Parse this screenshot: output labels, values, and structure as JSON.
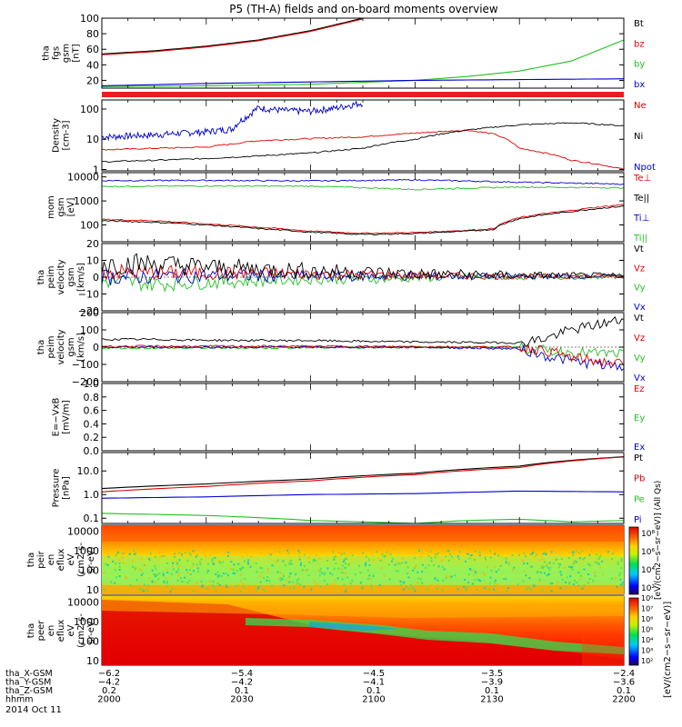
{
  "title": "P5 (TH-A) fields and on-board moments overview",
  "chart_data": [
    {
      "type": "line",
      "ylabel": [
        "tha",
        "fgs",
        "gsm",
        "[nT]"
      ],
      "ylim": [
        10,
        100
      ],
      "log": false,
      "ticks": [
        "20",
        "40",
        "60",
        "80",
        "100"
      ],
      "tick_values": [
        20,
        40,
        60,
        80,
        100
      ],
      "legend": [
        {
          "name": "Bt",
          "color": "#000000"
        },
        {
          "name": "bz",
          "color": "#e00000"
        },
        {
          "name": "by",
          "color": "#22c022"
        },
        {
          "name": "bx",
          "color": "#0000cc"
        }
      ],
      "series": [
        {
          "name": "Bt",
          "color": "#000000",
          "x": [
            0,
            0.1,
            0.2,
            0.3,
            0.4,
            0.5
          ],
          "y": [
            54,
            58,
            64,
            72,
            84,
            100
          ]
        },
        {
          "name": "bz",
          "color": "#e00000",
          "x": [
            0,
            0.1,
            0.2,
            0.3,
            0.4,
            0.5
          ],
          "y": [
            53,
            57,
            63,
            71,
            83,
            99
          ]
        },
        {
          "name": "by",
          "color": "#22c022",
          "x": [
            0,
            0.2,
            0.4,
            0.6,
            0.7,
            0.8,
            0.9,
            1.0
          ],
          "y": [
            12,
            13,
            15,
            20,
            25,
            32,
            45,
            72
          ]
        },
        {
          "name": "bx",
          "color": "#0000cc",
          "x": [
            0,
            0.2,
            0.4,
            0.6,
            0.8,
            1.0
          ],
          "y": [
            13,
            16,
            18,
            20,
            21,
            22
          ]
        }
      ]
    },
    {
      "type": "line",
      "ylabel": [
        "Density",
        "[cm-3]"
      ],
      "ylim": [
        0.9,
        200
      ],
      "log": true,
      "ticks": [
        "1",
        "10",
        "100"
      ],
      "tick_values": [
        1,
        10,
        100
      ],
      "legend": [
        {
          "name": "Ne",
          "color": "#e00000"
        },
        {
          "name": "Ni",
          "color": "#000000"
        },
        {
          "name": "Npot",
          "color": "#0000cc"
        }
      ],
      "series": [
        {
          "name": "Npot",
          "color": "#0000cc",
          "x": [
            0,
            0.1,
            0.2,
            0.25,
            0.28,
            0.3,
            0.35,
            0.4,
            0.45,
            0.5
          ],
          "y": [
            12,
            14,
            18,
            22,
            60,
            110,
            90,
            85,
            110,
            160
          ]
        },
        {
          "name": "Ne",
          "color": "#e00000",
          "x": [
            0,
            0.1,
            0.2,
            0.25,
            0.3,
            0.5,
            0.7,
            0.75,
            0.8,
            0.85,
            0.9,
            1.0
          ],
          "y": [
            4.5,
            5,
            5.5,
            7,
            9,
            12,
            20,
            15,
            5,
            3.5,
            2,
            1
          ]
        },
        {
          "name": "Ni",
          "color": "#000000",
          "x": [
            0,
            0.1,
            0.2,
            0.3,
            0.4,
            0.5,
            0.6,
            0.7,
            0.8,
            0.9,
            1.0
          ],
          "y": [
            1.8,
            2,
            2.3,
            2.8,
            3.5,
            5,
            10,
            20,
            30,
            35,
            28
          ]
        }
      ]
    },
    {
      "type": "line",
      "ylabel": [
        "mom",
        "gsm",
        "[eV]"
      ],
      "ylim": [
        20,
        15000
      ],
      "log": true,
      "ticks": [
        "100",
        "1000",
        "10000"
      ],
      "tick_values": [
        100,
        1000,
        10000
      ],
      "legend": [
        {
          "name": "Te⊥",
          "color": "#e00000"
        },
        {
          "name": "Te||",
          "color": "#000000"
        },
        {
          "name": "Ti⊥",
          "color": "#0000cc"
        },
        {
          "name": "Ti||",
          "color": "#22c022"
        }
      ],
      "series": [
        {
          "name": "Ti⊥",
          "color": "#0000cc",
          "x": [
            0,
            0.2,
            0.4,
            0.6,
            0.8,
            1.0
          ],
          "y": [
            7000,
            7200,
            6800,
            7500,
            6000,
            5000
          ]
        },
        {
          "name": "Ti||",
          "color": "#22c022",
          "x": [
            0,
            0.2,
            0.4,
            0.6,
            0.8,
            1.0
          ],
          "y": [
            4000,
            4200,
            4100,
            3000,
            3800,
            3500
          ]
        },
        {
          "name": "Te⊥",
          "color": "#e00000",
          "x": [
            0,
            0.1,
            0.2,
            0.3,
            0.4,
            0.5,
            0.6,
            0.7,
            0.75,
            0.8,
            0.9,
            1.0
          ],
          "y": [
            170,
            150,
            110,
            80,
            55,
            45,
            48,
            60,
            70,
            200,
            400,
            700
          ]
        },
        {
          "name": "Te||",
          "color": "#000000",
          "x": [
            0,
            0.1,
            0.2,
            0.3,
            0.4,
            0.5,
            0.6,
            0.7,
            0.75,
            0.8,
            0.9,
            1.0
          ],
          "y": [
            150,
            130,
            100,
            70,
            50,
            40,
            44,
            55,
            65,
            180,
            360,
            600
          ]
        }
      ]
    },
    {
      "type": "line",
      "ylabel": [
        "tha",
        "peim",
        "velocity",
        "gsm",
        "[km/s]"
      ],
      "ylim": [
        -20,
        20
      ],
      "log": false,
      "ticks": [
        "20",
        "10",
        "0",
        "−10",
        "−20"
      ],
      "tick_values": [
        20,
        10,
        0,
        -10,
        -20
      ],
      "legend": [
        {
          "name": "Vt",
          "color": "#000000"
        },
        {
          "name": "Vz",
          "color": "#e00000"
        },
        {
          "name": "Vy",
          "color": "#22c022"
        },
        {
          "name": "Vx",
          "color": "#0000cc"
        }
      ],
      "series": [
        {
          "name": "Vy",
          "color": "#22c022",
          "x": [
            0,
            0.1,
            0.2,
            0.3,
            0.4,
            0.5,
            0.6,
            0.7,
            0.8,
            0.9,
            1.0
          ],
          "y": [
            -2,
            -4,
            -3,
            -2,
            -1,
            -1,
            -0.5,
            0,
            0,
            0,
            0
          ]
        },
        {
          "name": "Vx",
          "color": "#0000cc",
          "x": [
            0,
            0.2,
            0.4,
            0.6,
            0.8,
            1.0
          ],
          "y": [
            0,
            1,
            0.5,
            0.5,
            0.5,
            0.5
          ]
        },
        {
          "name": "Vz",
          "color": "#e00000",
          "x": [
            0,
            0.2,
            0.4,
            0.6,
            0.8,
            1.0
          ],
          "y": [
            3,
            2.5,
            2,
            1,
            0.5,
            0.5
          ]
        },
        {
          "name": "Vt",
          "color": "#000000",
          "x": [
            0,
            0.1,
            0.2,
            0.3,
            0.4,
            0.5,
            0.6,
            0.7,
            0.8,
            0.9,
            1.0
          ],
          "y": [
            8,
            8,
            6,
            5,
            4,
            3,
            2,
            1.5,
            1,
            1,
            1
          ]
        }
      ]
    },
    {
      "type": "line",
      "ylabel": [
        "tha",
        "peim",
        "velocity",
        "gsm",
        "[km/s]"
      ],
      "ylim": [
        -200,
        200
      ],
      "log": false,
      "ticks": [
        "200",
        "100",
        "0",
        "−100",
        "−200"
      ],
      "tick_values": [
        200,
        100,
        0,
        -100,
        -200
      ],
      "legend": [
        {
          "name": "Vt",
          "color": "#000000"
        },
        {
          "name": "Vz",
          "color": "#e00000"
        },
        {
          "name": "Vy",
          "color": "#22c022"
        },
        {
          "name": "Vx",
          "color": "#0000cc"
        }
      ],
      "series": [
        {
          "name": "Vy",
          "color": "#22c022",
          "x": [
            0,
            0.2,
            0.4,
            0.6,
            0.8,
            0.85,
            0.9,
            1.0
          ],
          "y": [
            -5,
            -5,
            -3,
            0,
            0,
            -20,
            -30,
            -40
          ]
        },
        {
          "name": "Vx",
          "color": "#0000cc",
          "x": [
            0,
            0.2,
            0.4,
            0.6,
            0.8,
            0.85,
            0.9,
            1.0
          ],
          "y": [
            0,
            0,
            0,
            0,
            -10,
            -50,
            -80,
            -120
          ]
        },
        {
          "name": "Vz",
          "color": "#e00000",
          "x": [
            0,
            0.2,
            0.4,
            0.6,
            0.8,
            0.85,
            0.9,
            1.0
          ],
          "y": [
            5,
            5,
            5,
            3,
            0,
            -20,
            -60,
            -100
          ]
        },
        {
          "name": "Vt",
          "color": "#000000",
          "x": [
            0,
            0.1,
            0.2,
            0.4,
            0.6,
            0.8,
            0.85,
            0.9,
            1.0
          ],
          "y": [
            45,
            45,
            40,
            38,
            30,
            25,
            50,
            100,
            160
          ]
        }
      ]
    },
    {
      "type": "line",
      "ylabel": [
        "E=−VxB",
        "[mV/m]"
      ],
      "ylim": [
        0,
        1
      ],
      "log": false,
      "ticks": [
        "1.0",
        "0.8",
        "0.6",
        "0.4",
        "0.2",
        "0.0"
      ],
      "tick_values": [
        1,
        0.8,
        0.6,
        0.4,
        0.2,
        0
      ],
      "legend": [
        {
          "name": "Ez",
          "color": "#e00000"
        },
        {
          "name": "Ey",
          "color": "#22c022"
        },
        {
          "name": "Ex",
          "color": "#0000cc"
        }
      ],
      "series": []
    },
    {
      "type": "line",
      "ylabel": [
        "Pressure",
        "[nPa]"
      ],
      "ylim": [
        0.06,
        60
      ],
      "log": true,
      "ticks": [
        "0.1",
        "1.0",
        "10.0"
      ],
      "tick_values": [
        0.1,
        1,
        10
      ],
      "legend": [
        {
          "name": "Pt",
          "color": "#000000"
        },
        {
          "name": "Pb",
          "color": "#e00000"
        },
        {
          "name": "Pe",
          "color": "#22c022"
        },
        {
          "name": "Pi",
          "color": "#0000cc"
        }
      ],
      "series": [
        {
          "name": "Pt",
          "color": "#000000",
          "x": [
            0,
            0.2,
            0.4,
            0.6,
            0.8,
            1.0
          ],
          "y": [
            1.8,
            2.8,
            4.5,
            8,
            16,
            40
          ]
        },
        {
          "name": "Pb",
          "color": "#e00000",
          "x": [
            0,
            0.2,
            0.4,
            0.6,
            0.8,
            1.0
          ],
          "y": [
            1.3,
            2.2,
            3.8,
            7,
            14,
            39
          ]
        },
        {
          "name": "Pi",
          "color": "#0000cc",
          "x": [
            0,
            0.2,
            0.4,
            0.6,
            0.8,
            1.0
          ],
          "y": [
            0.7,
            0.8,
            1.0,
            1.1,
            1.4,
            1.3
          ]
        },
        {
          "name": "Pe",
          "color": "#22c022",
          "x": [
            0,
            0.2,
            0.4,
            0.6,
            0.7,
            0.8,
            0.9,
            1.0
          ],
          "y": [
            0.16,
            0.13,
            0.08,
            0.06,
            0.08,
            0.09,
            0.07,
            0.08
          ]
        }
      ]
    },
    {
      "type": "heatmap",
      "ylabel": [
        "tha",
        "peir",
        "en",
        "eflux",
        "eV",
        "(cm2-s-",
        "sr-eV)"
      ],
      "ylim": [
        6,
        20000
      ],
      "log": true,
      "ticks": [
        "10",
        "100",
        "1000",
        "10000"
      ],
      "tick_values": [
        10,
        100,
        1000,
        10000
      ],
      "colorbar": {
        "ticks": [
          "10²",
          "10⁴",
          "10⁶",
          "10⁸"
        ],
        "label": "[eV/(cm2−s−sr−eV)] (All Qs)"
      },
      "description": "ion energy flux: red/orange above 1000 eV, green-cyan speckle below 300 eV"
    },
    {
      "type": "heatmap",
      "ylabel": [
        "tha",
        "peer",
        "en",
        "eflux",
        "eV",
        "(cm2-s-",
        "sr-eV)"
      ],
      "ylim": [
        6,
        20000
      ],
      "log": true,
      "ticks": [
        "10",
        "100",
        "1000",
        "10000"
      ],
      "tick_values": [
        10,
        100,
        1000,
        10000
      ],
      "colorbar": {
        "ticks": [
          "10²",
          "10³",
          "10⁴",
          "10⁵",
          "10⁶",
          "10⁷",
          "10⁸"
        ],
        "label": "[eV/(cm2−s−sr−eV)]"
      },
      "description": "electron energy flux: red at low energy, green band around 100–600 eV after 2030"
    }
  ],
  "xaxis": {
    "rows": [
      {
        "label": "tha_X-GSM",
        "values": [
          "−6.2",
          "−5.4",
          "−4.5",
          "−3.5",
          "−2.4"
        ]
      },
      {
        "label": "tha_Y-GSM",
        "values": [
          "−4.2",
          "−4.2",
          "−4.1",
          "−3.9",
          "−3.6"
        ]
      },
      {
        "label": "tha_Z-GSM",
        "values": [
          "0.2",
          "0.1",
          "0.1",
          "0.1",
          "0.1"
        ]
      },
      {
        "label": "hhmm",
        "values": [
          "2000",
          "2030",
          "2100",
          "2130",
          "2200"
        ]
      }
    ],
    "date": "2014 Oct 11"
  }
}
